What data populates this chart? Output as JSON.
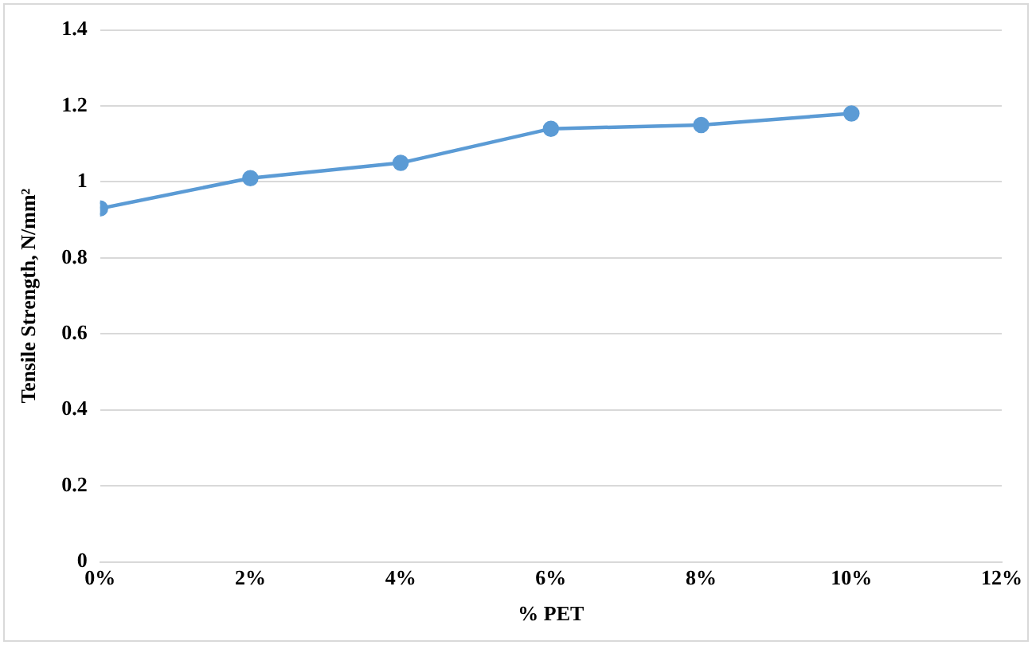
{
  "chart_data": {
    "type": "line",
    "xlabel": "% PET",
    "ylabel": "Tensile Strength, N/mm²",
    "x": [
      0,
      2,
      4,
      6,
      8,
      10
    ],
    "series": [
      {
        "color": "#5b9bd5",
        "values": [
          0.93,
          1.01,
          1.05,
          1.14,
          1.15,
          1.18
        ]
      }
    ],
    "xlim": [
      0,
      12
    ],
    "xticks": [
      {
        "value": 0,
        "label": "0%"
      },
      {
        "value": 2,
        "label": "2%"
      },
      {
        "value": 4,
        "label": "4%"
      },
      {
        "value": 6,
        "label": "6%"
      },
      {
        "value": 8,
        "label": "8%"
      },
      {
        "value": 10,
        "label": "10%"
      },
      {
        "value": 12,
        "label": "12%"
      }
    ],
    "ylim": [
      0,
      1.4
    ],
    "yticks": [
      0,
      0.2,
      0.4,
      0.6,
      0.8,
      1,
      1.2,
      1.4
    ],
    "grid": "y",
    "marker": "circle",
    "line_style": "solid",
    "legend": false
  }
}
